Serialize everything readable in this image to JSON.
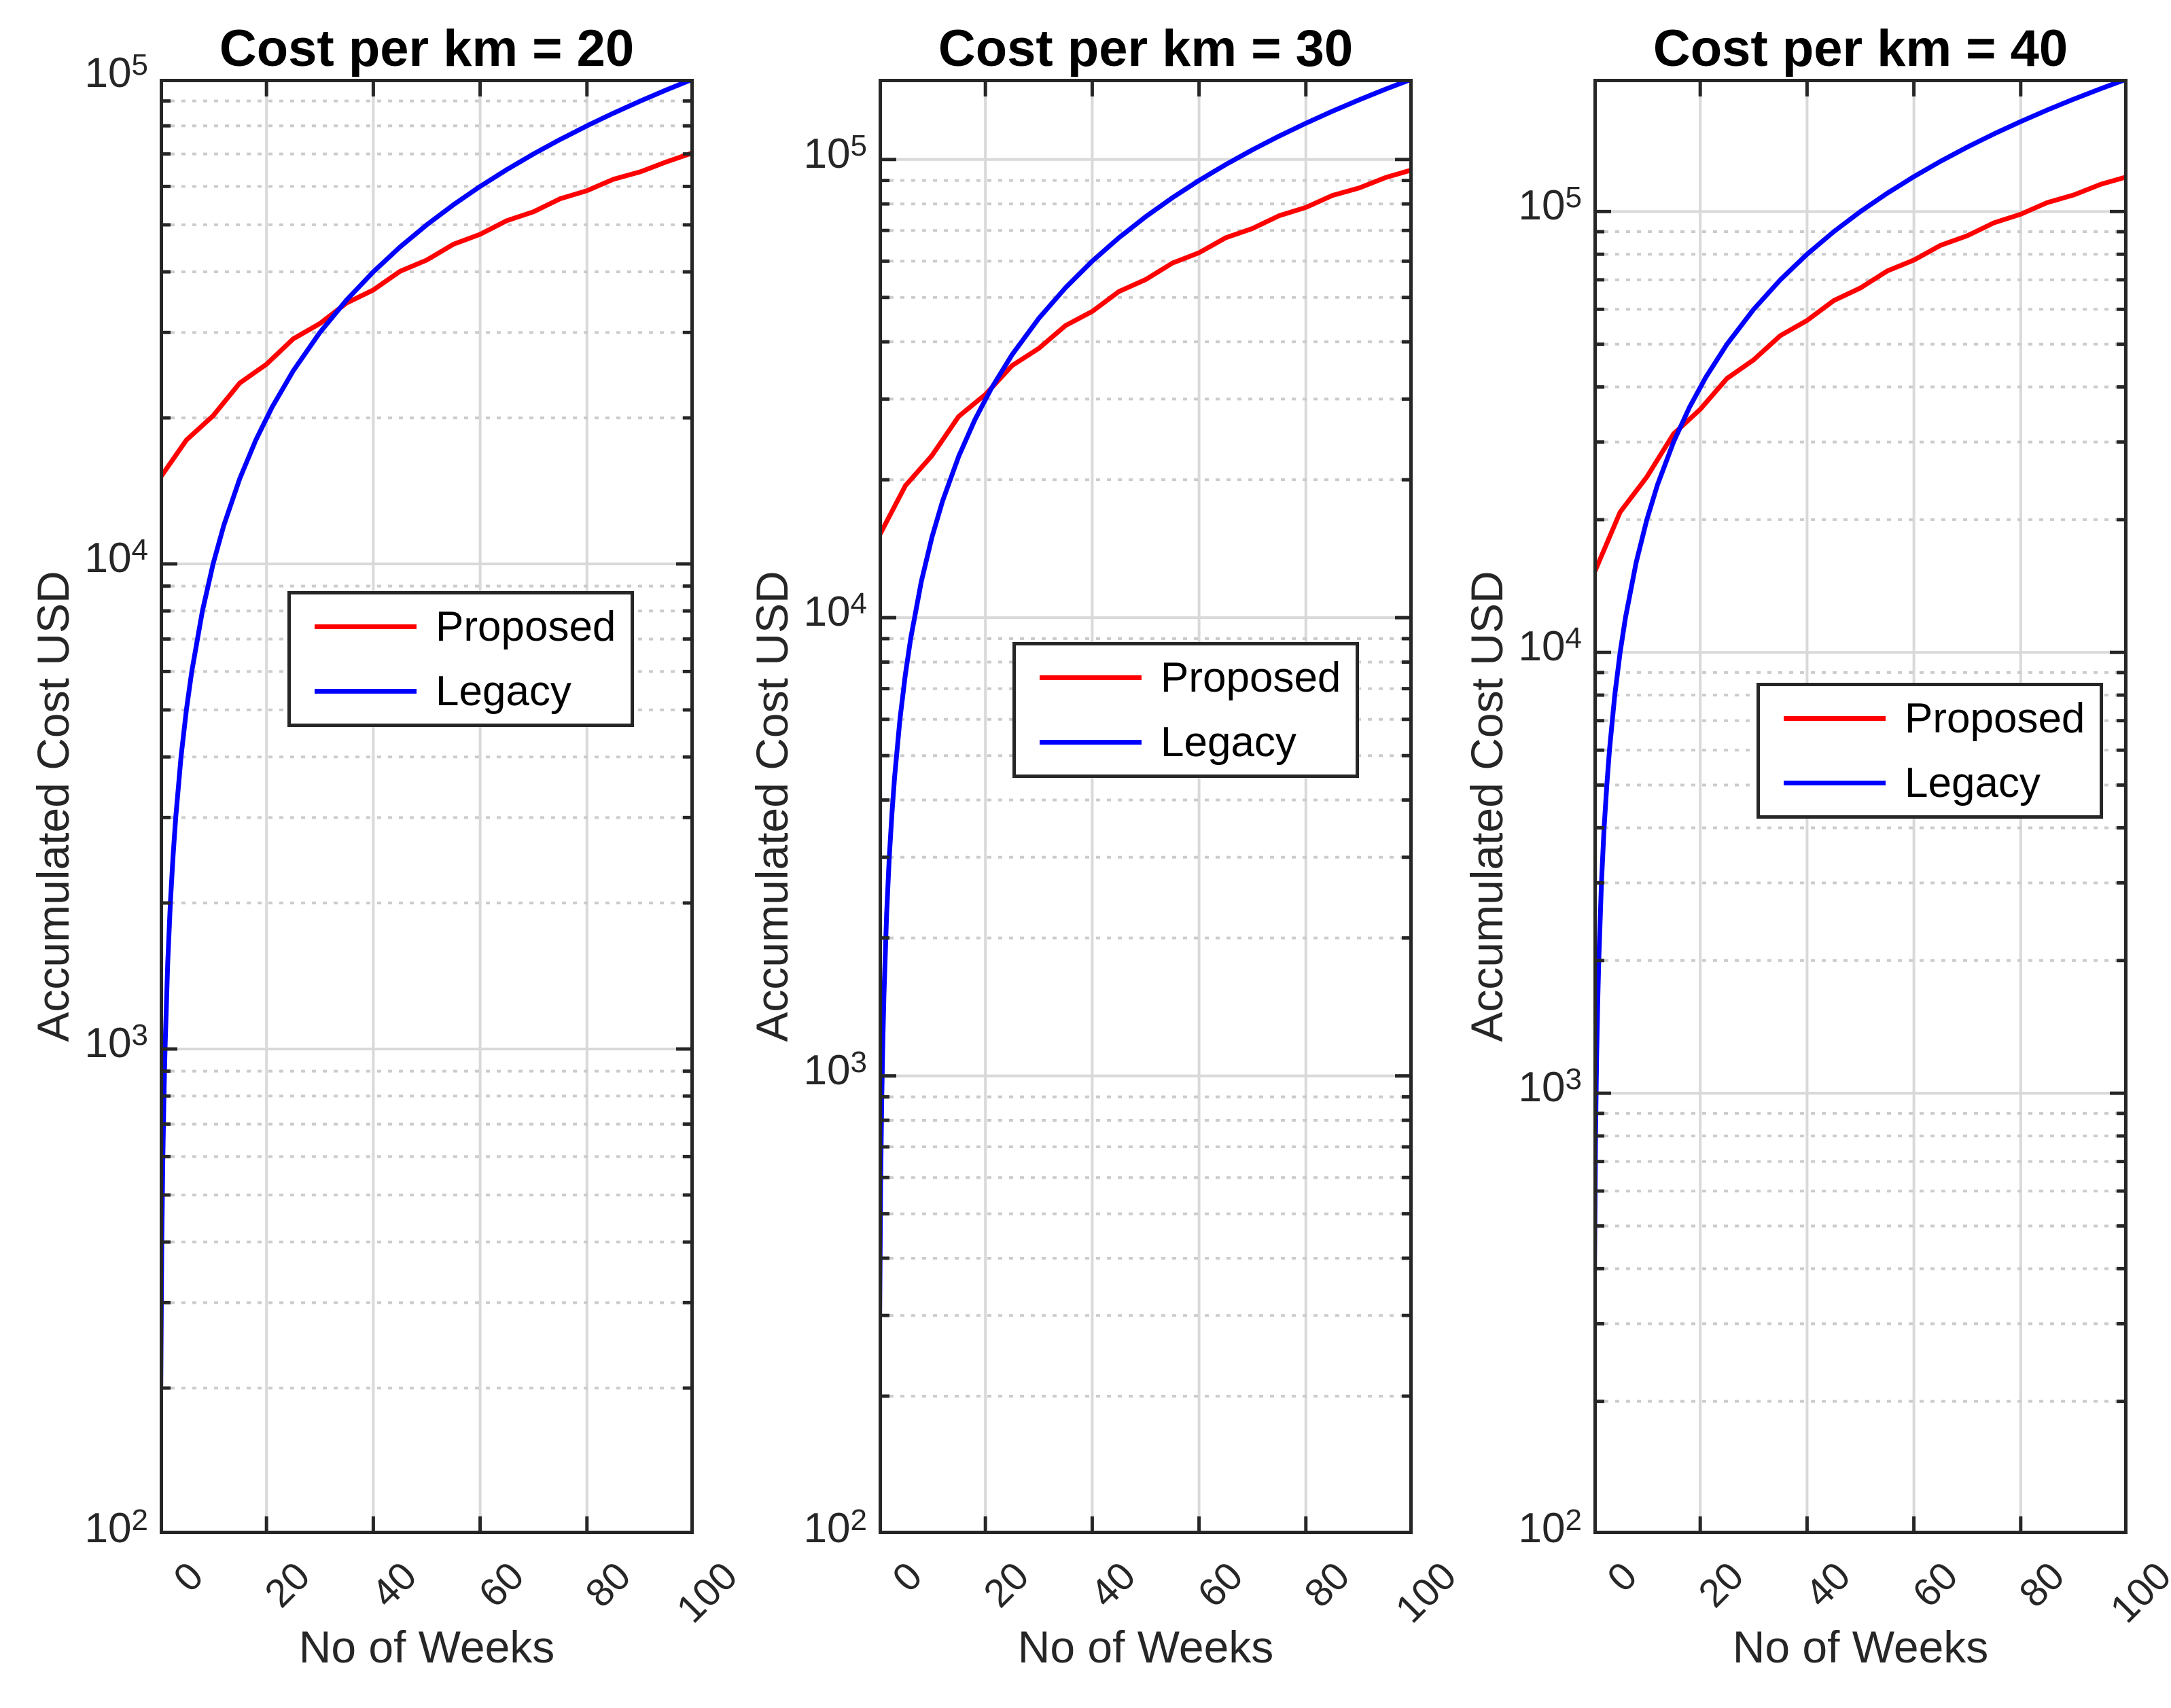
{
  "figure": {
    "background": "#ffffff",
    "axis_color": "#262626",
    "grid_color": "#d9d9d9",
    "minor_grid_color": "#cccccc"
  },
  "legend": {
    "items": [
      {
        "label": "Proposed",
        "color": "#ff0000"
      },
      {
        "label": "Legacy",
        "color": "#0000ff"
      }
    ]
  },
  "chart_data": [
    {
      "type": "line",
      "title": "Cost per km = 20",
      "xlabel": "No of Weeks",
      "ylabel": "Accumulated Cost USD",
      "yscale": "log",
      "grid": true,
      "xlim": [
        0,
        100
      ],
      "ylim": [
        100,
        100000
      ],
      "xticks": [
        0,
        20,
        40,
        60,
        80,
        100
      ],
      "ytick_exponents": [
        2,
        3,
        4,
        5
      ],
      "legend_position": "inside-left-middle",
      "series": [
        {
          "name": "Proposed",
          "color": "#ff0000",
          "x": [
            0,
            5,
            10,
            15,
            20,
            25,
            30,
            35,
            40,
            45,
            50,
            55,
            60,
            65,
            70,
            75,
            80,
            85,
            90,
            95,
            100
          ],
          "y": [
            15000,
            18000,
            20200,
            23600,
            25800,
            29100,
            31300,
            34500,
            36700,
            40100,
            42300,
            45600,
            47800,
            51000,
            53200,
            56600,
            58800,
            62100,
            64300,
            67500,
            70500
          ]
        },
        {
          "name": "Legacy",
          "color": "#0000ff",
          "x": [
            0.2,
            0.4,
            0.6,
            0.8,
            1,
            1.5,
            2,
            2.5,
            3,
            4,
            5,
            6,
            8,
            10,
            12,
            15,
            18,
            21,
            25,
            30,
            35,
            40,
            45,
            50,
            55,
            60,
            65,
            70,
            75,
            80,
            85,
            90,
            95,
            100
          ],
          "y": [
            200,
            400,
            600,
            800,
            1000,
            1500,
            2000,
            2500,
            3000,
            4000,
            5000,
            6000,
            8000,
            10000,
            12000,
            15000,
            18000,
            21000,
            25000,
            30000,
            35000,
            40000,
            45000,
            50000,
            55000,
            60000,
            65000,
            70000,
            75000,
            80000,
            85000,
            90000,
            95000,
            100000
          ]
        }
      ]
    },
    {
      "type": "line",
      "title": "Cost per km = 30",
      "xlabel": "No of Weeks",
      "ylabel": "Accumulated Cost USD",
      "yscale": "log",
      "grid": true,
      "xlim": [
        0,
        100
      ],
      "ylim": [
        100,
        150000
      ],
      "xticks": [
        0,
        20,
        40,
        60,
        80,
        100
      ],
      "ytick_exponents": [
        2,
        3,
        4,
        5
      ],
      "legend_position": "inside-left-middle",
      "series": [
        {
          "name": "Proposed",
          "color": "#ff0000",
          "x": [
            0,
            5,
            10,
            15,
            20,
            25,
            30,
            35,
            40,
            45,
            50,
            55,
            60,
            65,
            70,
            75,
            80,
            85,
            90,
            95,
            100
          ],
          "y": [
            15000,
            19400,
            22600,
            27500,
            30700,
            35500,
            38700,
            43400,
            46600,
            51500,
            54700,
            59400,
            62600,
            67500,
            70700,
            75400,
            78600,
            83500,
            86700,
            91400,
            95000
          ]
        },
        {
          "name": "Legacy",
          "color": "#0000ff",
          "x": [
            0.2,
            0.4,
            0.6,
            0.8,
            1,
            1.5,
            2,
            2.5,
            3,
            4,
            5,
            6,
            8,
            10,
            12,
            15,
            18,
            21,
            25,
            30,
            35,
            40,
            45,
            50,
            55,
            60,
            65,
            70,
            75,
            80,
            85,
            90,
            95,
            100
          ],
          "y": [
            300,
            600,
            900,
            1200,
            1500,
            2250,
            3000,
            3750,
            4500,
            6000,
            7500,
            9000,
            12000,
            15000,
            18000,
            22500,
            27000,
            31500,
            37500,
            45000,
            52500,
            60000,
            67500,
            75000,
            82500,
            90000,
            97500,
            105000,
            112500,
            120000,
            127500,
            135000,
            142500,
            150000
          ]
        }
      ]
    },
    {
      "type": "line",
      "title": "Cost per km = 40",
      "xlabel": "No of Weeks",
      "ylabel": "Accumulated Cost USD",
      "yscale": "log",
      "grid": true,
      "xlim": [
        0,
        100
      ],
      "ylim": [
        100,
        200000
      ],
      "xticks": [
        0,
        20,
        40,
        60,
        80,
        100
      ],
      "ytick_exponents": [
        2,
        3,
        4,
        5
      ],
      "legend_position": "inside-left-middle",
      "series": [
        {
          "name": "Proposed",
          "color": "#ff0000",
          "x": [
            0,
            5,
            10,
            15,
            20,
            25,
            30,
            35,
            40,
            45,
            50,
            55,
            60,
            65,
            70,
            75,
            80,
            85,
            90,
            95,
            100
          ],
          "y": [
            15000,
            20800,
            25000,
            31300,
            35600,
            41800,
            46100,
            52300,
            56600,
            62800,
            67100,
            73300,
            77600,
            83800,
            88100,
            94300,
            98600,
            104800,
            109100,
            115300,
            120000
          ]
        },
        {
          "name": "Legacy",
          "color": "#0000ff",
          "x": [
            0.2,
            0.4,
            0.6,
            0.8,
            1,
            1.5,
            2,
            2.5,
            3,
            4,
            5,
            6,
            8,
            10,
            12,
            15,
            18,
            21,
            25,
            30,
            35,
            40,
            45,
            50,
            55,
            60,
            65,
            70,
            75,
            80,
            85,
            90,
            95,
            100
          ],
          "y": [
            400,
            800,
            1200,
            1600,
            2000,
            3000,
            4000,
            5000,
            6000,
            8000,
            10000,
            12000,
            16000,
            20000,
            24000,
            30000,
            36000,
            42000,
            50000,
            60000,
            70000,
            80000,
            90000,
            100000,
            110000,
            120000,
            130000,
            140000,
            150000,
            160000,
            170000,
            180000,
            190000,
            200000
          ]
        }
      ]
    }
  ]
}
